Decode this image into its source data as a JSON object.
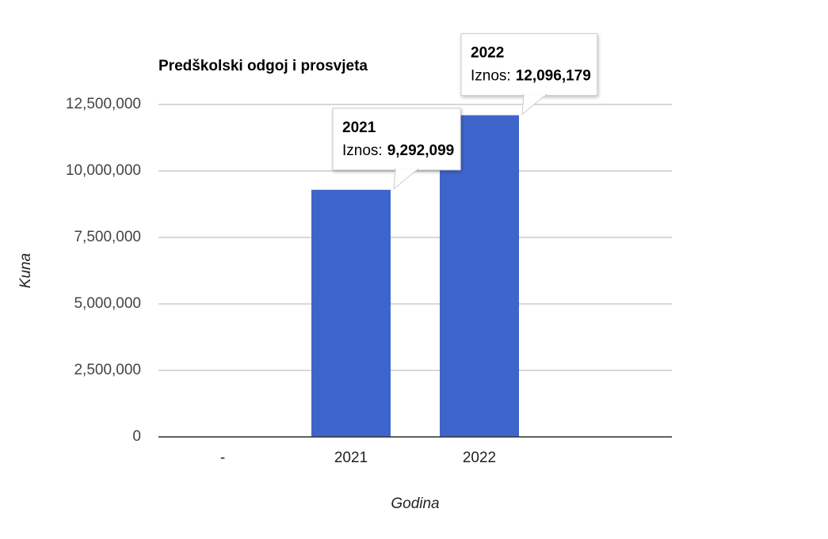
{
  "chart_data": {
    "type": "bar",
    "title": "Predškolski odgoj i prosvjeta",
    "x_label": "Godina",
    "y_label": "Kuna",
    "categories": [
      "-",
      "2021",
      "2022",
      null
    ],
    "values": [
      0,
      9292099,
      12096179,
      null
    ],
    "value_labels": [
      null,
      "9,292,099",
      "12,096,179",
      null
    ],
    "tooltip_label": "Iznos:",
    "color": "#3e65cb",
    "ylim": [
      0,
      12500000
    ],
    "yticks": [
      {
        "value": 0,
        "label": "0"
      },
      {
        "value": 2500000,
        "label": "2,500,000"
      },
      {
        "value": 5000000,
        "label": "5,000,000"
      },
      {
        "value": 7500000,
        "label": "7,500,000"
      },
      {
        "value": 10000000,
        "label": "10,000,000"
      },
      {
        "value": 12500000,
        "label": "12,500,000"
      }
    ],
    "grid": true
  }
}
